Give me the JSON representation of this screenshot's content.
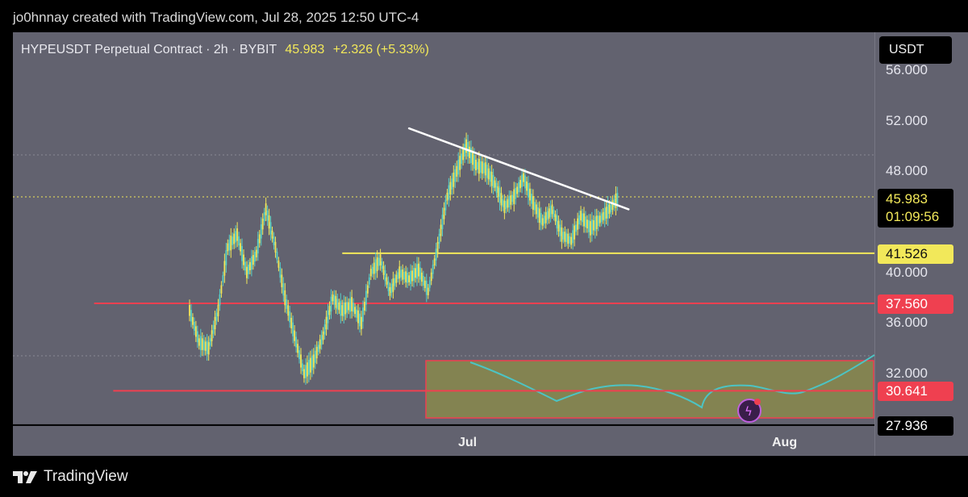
{
  "header": {
    "caption": "jo0hnnay created with TradingView.com, Jul 28, 2025 12:50 UTC-4"
  },
  "legend": {
    "symbol": "HYPEUSDT Perpetual Contract · 2h · BYBIT",
    "last": "45.983",
    "change": "+2.326 (+5.33%)"
  },
  "currency_button": "USDT",
  "price_tag": {
    "value": "45.983",
    "countdown": "01:09:56",
    "color": "#f2e85a"
  },
  "level_tags": [
    {
      "value": "41.526",
      "bg": "#f2e85a",
      "fg": "#111111"
    },
    {
      "value": "37.560",
      "bg": "#ef4050",
      "fg": "#ffffff"
    },
    {
      "value": "30.641",
      "bg": "#ef4050",
      "fg": "#ffffff"
    },
    {
      "value": "27.936",
      "bg": "#000000",
      "fg": "#ffffff"
    }
  ],
  "footer": {
    "brand": "TradingView"
  },
  "colors": {
    "candle": "#f2e85a",
    "candle_alt": "#58d0c8",
    "resistance": "#ffffff",
    "support_yellow": "#f2e85a",
    "support_red": "#ef4050",
    "zone_fill": "#8a8a4c",
    "oscillator": "#4cc4c4"
  },
  "chart_data": {
    "type": "line",
    "title": "HYPEUSDT Perpetual Contract · 2h · BYBIT",
    "y_ticks": [
      "56.000",
      "52.000",
      "48.000",
      "40.000",
      "36.000",
      "32.000"
    ],
    "x_ticks": [
      "Jul",
      "Aug"
    ],
    "ylim": [
      25.5,
      59
    ],
    "dates": [
      "2025-06-13",
      "2025-06-14",
      "2025-06-15",
      "2025-06-16",
      "2025-06-17",
      "2025-06-18",
      "2025-06-19",
      "2025-06-20",
      "2025-06-21",
      "2025-06-22",
      "2025-06-23",
      "2025-06-24",
      "2025-06-25",
      "2025-06-26",
      "2025-06-27",
      "2025-06-28",
      "2025-06-29",
      "2025-06-30",
      "2025-07-01",
      "2025-07-02",
      "2025-07-03",
      "2025-07-04",
      "2025-07-05",
      "2025-07-06",
      "2025-07-07",
      "2025-07-08",
      "2025-07-09",
      "2025-07-10",
      "2025-07-11",
      "2025-07-12",
      "2025-07-13",
      "2025-07-14",
      "2025-07-15",
      "2025-07-16",
      "2025-07-17",
      "2025-07-18",
      "2025-07-19",
      "2025-07-20",
      "2025-07-21",
      "2025-07-22",
      "2025-07-23",
      "2025-07-24",
      "2025-07-25",
      "2025-07-26",
      "2025-07-27",
      "2025-07-28"
    ],
    "series": [
      {
        "values": [
          37,
          34.5,
          34,
          37,
          42,
          43,
          40,
          41.5,
          45,
          42,
          38,
          35,
          32,
          33,
          35,
          38,
          37,
          37.5,
          36,
          40,
          41,
          38.5,
          40,
          39.5,
          40.2,
          38.5,
          42,
          46,
          48,
          50,
          48.5,
          48.2,
          47,
          45.2,
          46,
          47.5,
          45.5,
          44,
          45,
          43,
          42.5,
          44.5,
          43.5,
          44.2,
          45,
          46
        ]
      }
    ],
    "lines": [
      {
        "kind": "trendline",
        "from": [
          "2025-07-06",
          51.4
        ],
        "to": [
          "2025-07-29",
          45.0
        ]
      },
      {
        "kind": "horizontal",
        "value": 41.526,
        "from": "2025-06-29"
      },
      {
        "kind": "horizontal",
        "value": 37.56,
        "from": "2025-06-03"
      },
      {
        "kind": "horizontal",
        "value": 30.641,
        "from": "2025-06-05"
      },
      {
        "kind": "horizontal",
        "value": 27.936,
        "from": "2025-05-24"
      }
    ],
    "zone": {
      "from": "2025-06-26",
      "top": 30.641,
      "bottom": 25.5
    }
  }
}
